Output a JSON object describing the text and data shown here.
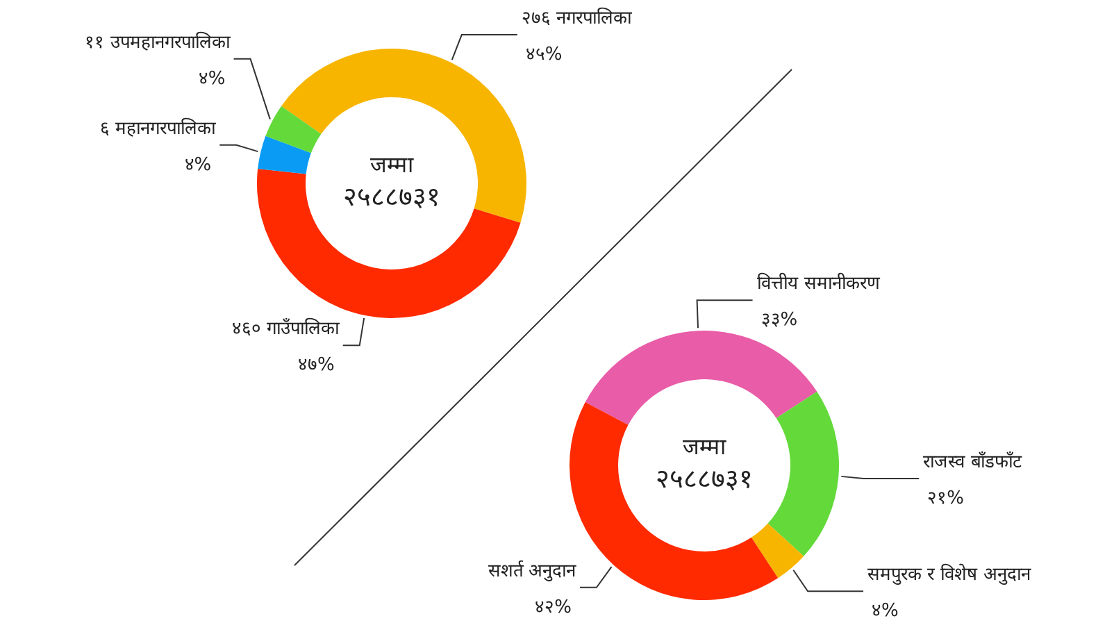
{
  "chart_data": [
    {
      "type": "donut",
      "categories": [
        "२७६ नगरपालिका",
        "४६० गाउँपालिका",
        "६ महानगरपालिका",
        "११ उपमहानगरपालिका"
      ],
      "values": [
        45,
        47,
        4,
        4
      ],
      "value_labels": [
        "४५%",
        "४७%",
        "४%",
        "४%"
      ],
      "colors": [
        "#f7b500",
        "#ff2a00",
        "#0a9cf5",
        "#63d93a"
      ],
      "annotations": [
        "जम्मा",
        "२५८८७३१"
      ]
    },
    {
      "type": "donut",
      "categories": [
        "वित्तीय समानीकरण",
        "राजस्व बाँडफाँट",
        "समपुरक र विशेष अनुदान",
        "सशर्त अनुदान"
      ],
      "values": [
        33,
        21,
        4,
        42
      ],
      "value_labels": [
        "३३%",
        "२१%",
        "४%",
        "४२%"
      ],
      "colors": [
        "#e95ca8",
        "#63d93a",
        "#f7b500",
        "#ff2a00"
      ],
      "annotations": [
        "जम्मा",
        "२५८८७३१"
      ]
    }
  ]
}
